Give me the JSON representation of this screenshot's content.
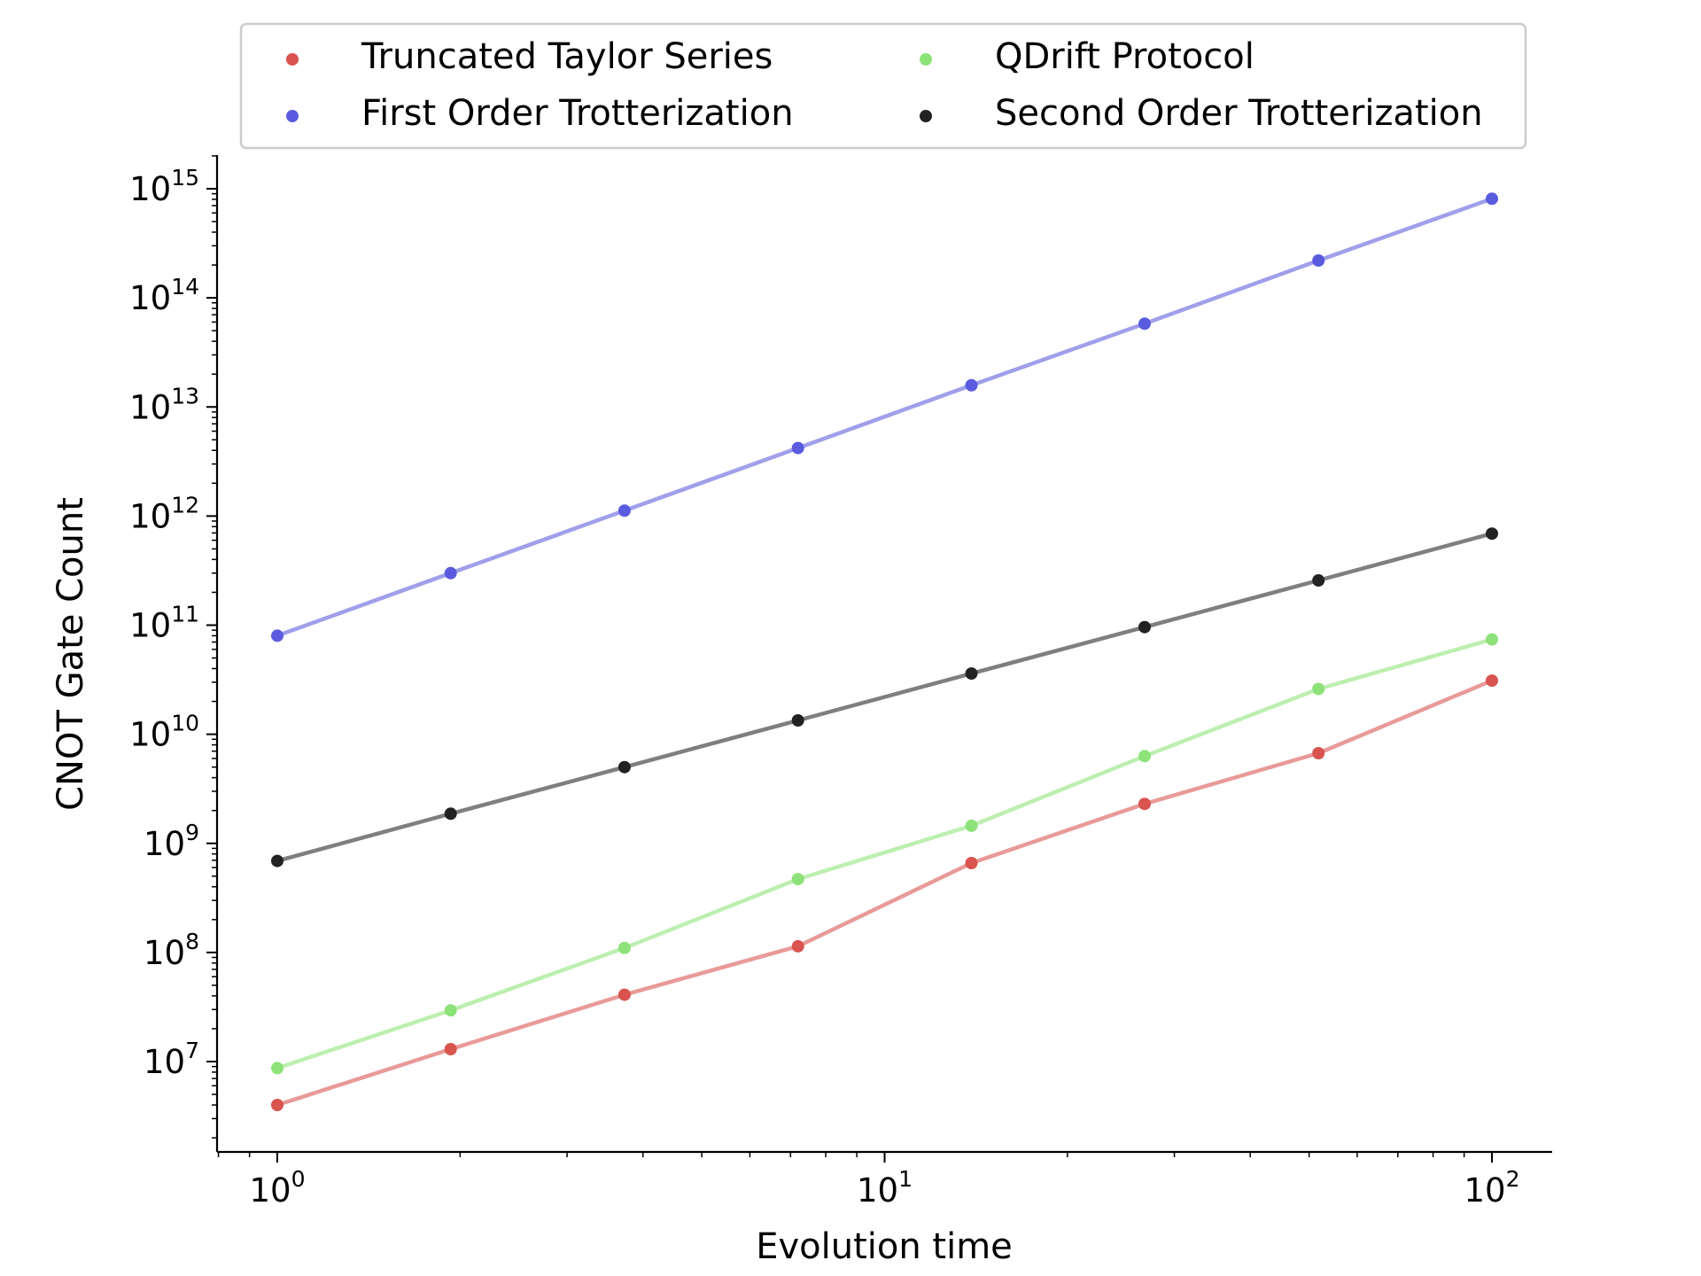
{
  "chart_data": {
    "type": "line",
    "xlabel": "Evolution time",
    "ylabel": "CNOT Gate Count",
    "xscale": "log",
    "yscale": "log",
    "xlim": [
      0.8,
      125
    ],
    "ylim": [
      1500000.0,
      2000000000000000.0
    ],
    "grid": false,
    "legend_position": "top",
    "legend_columns": 2,
    "x": [
      1,
      1.93,
      3.73,
      7.2,
      13.9,
      26.8,
      51.8,
      100
    ],
    "x_ticks": [
      {
        "value": 1,
        "base": "10",
        "exp": "0"
      },
      {
        "value": 10,
        "base": "10",
        "exp": "1"
      },
      {
        "value": 100,
        "base": "10",
        "exp": "2"
      }
    ],
    "y_ticks": [
      {
        "value": 10000000.0,
        "base": "10",
        "exp": "7"
      },
      {
        "value": 100000000.0,
        "base": "10",
        "exp": "8"
      },
      {
        "value": 1000000000.0,
        "base": "10",
        "exp": "9"
      },
      {
        "value": 10000000000.0,
        "base": "10",
        "exp": "10"
      },
      {
        "value": 100000000000.0,
        "base": "10",
        "exp": "11"
      },
      {
        "value": 1000000000000.0,
        "base": "10",
        "exp": "12"
      },
      {
        "value": 10000000000000.0,
        "base": "10",
        "exp": "13"
      },
      {
        "value": 100000000000000.0,
        "base": "10",
        "exp": "14"
      },
      {
        "value": 1000000000000000.0,
        "base": "10",
        "exp": "15"
      }
    ],
    "series": [
      {
        "name": "Truncated Taylor Series",
        "marker_color": "#d9534f",
        "line_color": "#e89a99",
        "values": [
          4000000.0,
          13000000.0,
          41000000.0,
          114000000.0,
          660000000.0,
          2300000000.0,
          6700000000.0,
          31000000000.0
        ]
      },
      {
        "name": "First Order Trotterization",
        "marker_color": "#5b5be0",
        "line_color": "#9f9fea",
        "values": [
          80000000000.0,
          300000000000.0,
          1120000000000.0,
          4200000000000.0,
          15800000000000.0,
          58000000000000.0,
          220000000000000.0,
          810000000000000.0
        ]
      },
      {
        "name": "QDrift Protocol",
        "marker_color": "#8ee27a",
        "line_color": "#bdefb0",
        "values": [
          8700000.0,
          29500000.0,
          110000000.0,
          470000000.0,
          1450000000.0,
          6300000000.0,
          26000000000.0,
          74000000000.0
        ]
      },
      {
        "name": "Second Order Trotterization",
        "marker_color": "#222222",
        "line_color": "#7f7f7f",
        "values": [
          690000000.0,
          1870000000.0,
          5000000000.0,
          13400000000.0,
          36000000000.0,
          96000000000.0,
          257000000000.0,
          690000000000.0
        ]
      }
    ]
  }
}
